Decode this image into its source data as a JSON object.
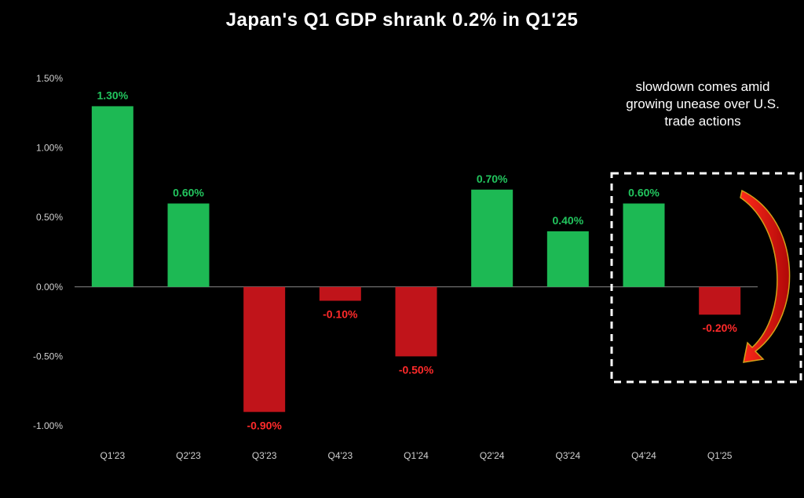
{
  "colors": {
    "background": "#000000",
    "positive": "#1db954",
    "negative": "#c0141a",
    "positive_label": "#22c55e",
    "negative_label": "#ff2a2a",
    "text": "#ffffff",
    "axis_text": "#cfcfcf",
    "arrow": "#e01010"
  },
  "chart_data": {
    "type": "bar",
    "title": "Japan's Q1 GDP shrank 0.2% in Q1'25",
    "categories": [
      "Q1'23",
      "Q2'23",
      "Q3'23",
      "Q4'23",
      "Q1'24",
      "Q2'24",
      "Q3'24",
      "Q4'24",
      "Q1'25"
    ],
    "values": [
      1.3,
      0.6,
      -0.9,
      -0.1,
      -0.5,
      0.7,
      0.4,
      0.6,
      -0.2
    ],
    "data_labels": [
      "1.30%",
      "0.60%",
      "-0.90%",
      "-0.10%",
      "-0.50%",
      "0.70%",
      "0.40%",
      "0.60%",
      "-0.20%"
    ],
    "y_ticks": [
      1.5,
      1.0,
      0.5,
      0.0,
      -0.5,
      -1.0
    ],
    "y_tick_labels": [
      "1.50%",
      "1.00%",
      "0.50%",
      "0.00%",
      "-0.50%",
      "-1.00%"
    ],
    "ylim": [
      -1.0,
      1.5
    ],
    "grid": false,
    "annotation": "slowdown comes amid growing unease over U.S. trade actions",
    "highlight": [
      "Q4'24",
      "Q1'25"
    ]
  }
}
